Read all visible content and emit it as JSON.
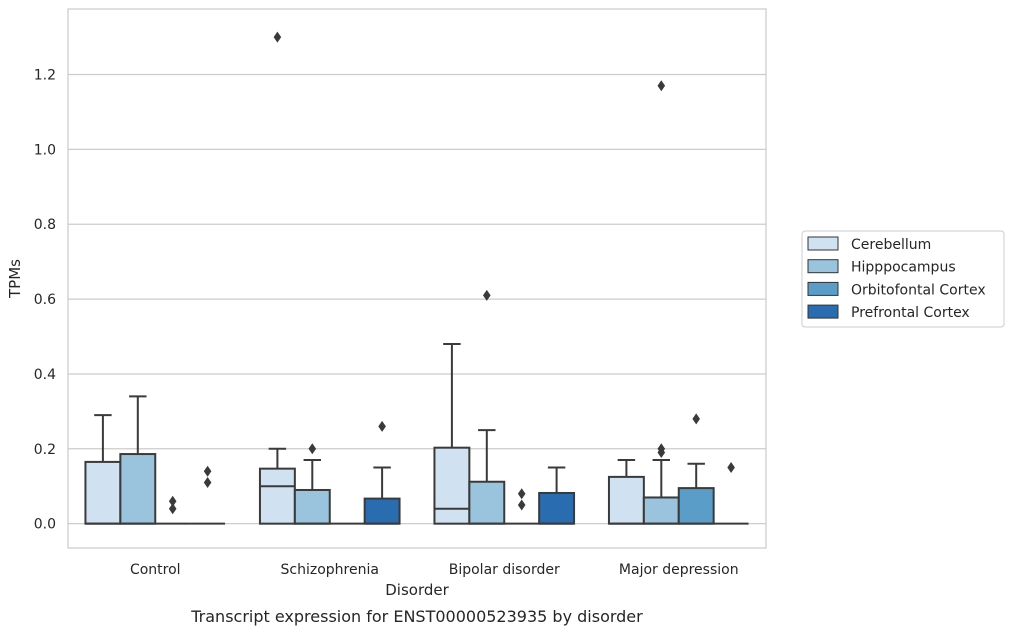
{
  "chart_data": {
    "type": "box",
    "caption": "Transcript expression for ENST00000523935 by disorder",
    "xlabel": "Disorder",
    "ylabel": "TPMs",
    "ylim": [
      -0.065,
      1.375
    ],
    "yticks": [
      0.0,
      0.2,
      0.4,
      0.6,
      0.8,
      1.0,
      1.2
    ],
    "ytick_labels": [
      "0.0",
      "0.2",
      "0.4",
      "0.6",
      "0.8",
      "1.0",
      "1.2"
    ],
    "grid": "horizontal",
    "legend_position": "outside-right",
    "categories": [
      "Control",
      "Schizophrenia",
      "Bipolar disorder",
      "Major depression"
    ],
    "series": [
      {
        "name": "Cerebellum",
        "color": "#d0e1f2",
        "boxes": [
          {
            "min": 0.0,
            "q1": 0.0,
            "median": 0.0,
            "q3": 0.165,
            "max": 0.29,
            "outliers": []
          },
          {
            "min": 0.0,
            "q1": 0.0,
            "median": 0.1,
            "q3": 0.147,
            "max": 0.2,
            "outliers": [
              1.3
            ]
          },
          {
            "min": 0.0,
            "q1": 0.0,
            "median": 0.04,
            "q3": 0.203,
            "max": 0.48,
            "outliers": []
          },
          {
            "min": 0.0,
            "q1": 0.0,
            "median": 0.0,
            "q3": 0.125,
            "max": 0.17,
            "outliers": []
          }
        ]
      },
      {
        "name": "Hipppocampus",
        "color": "#9ac3de",
        "boxes": [
          {
            "min": 0.0,
            "q1": 0.0,
            "median": 0.0,
            "q3": 0.186,
            "max": 0.34,
            "outliers": []
          },
          {
            "min": 0.0,
            "q1": 0.0,
            "median": 0.0,
            "q3": 0.09,
            "max": 0.17,
            "outliers": [
              0.2
            ]
          },
          {
            "min": 0.0,
            "q1": 0.0,
            "median": 0.0,
            "q3": 0.112,
            "max": 0.25,
            "outliers": [
              0.61
            ]
          },
          {
            "min": 0.0,
            "q1": 0.0,
            "median": 0.0,
            "q3": 0.07,
            "max": 0.17,
            "outliers": [
              0.19,
              0.2,
              1.17
            ]
          }
        ]
      },
      {
        "name": "Orbitofontal Cortex",
        "color": "#5b9dc9",
        "boxes": [
          {
            "min": 0.0,
            "q1": 0.0,
            "median": 0.0,
            "q3": 0.0,
            "max": 0.0,
            "outliers": [
              0.04,
              0.06
            ]
          },
          {
            "min": 0.0,
            "q1": 0.0,
            "median": 0.0,
            "q3": 0.0,
            "max": 0.0,
            "outliers": []
          },
          {
            "min": 0.0,
            "q1": 0.0,
            "median": 0.0,
            "q3": 0.0,
            "max": 0.0,
            "outliers": [
              0.05,
              0.08
            ]
          },
          {
            "min": 0.0,
            "q1": 0.0,
            "median": 0.0,
            "q3": 0.095,
            "max": 0.16,
            "outliers": [
              0.28
            ]
          }
        ]
      },
      {
        "name": "Prefrontal Cortex",
        "color": "#2a6cb0",
        "boxes": [
          {
            "min": 0.0,
            "q1": 0.0,
            "median": 0.0,
            "q3": 0.0,
            "max": 0.0,
            "outliers": [
              0.11,
              0.14
            ]
          },
          {
            "min": 0.0,
            "q1": 0.0,
            "median": 0.0,
            "q3": 0.067,
            "max": 0.15,
            "outliers": [
              0.26
            ]
          },
          {
            "min": 0.0,
            "q1": 0.0,
            "median": 0.0,
            "q3": 0.082,
            "max": 0.15,
            "outliers": []
          },
          {
            "min": 0.0,
            "q1": 0.0,
            "median": 0.0,
            "q3": 0.0,
            "max": 0.0,
            "outliers": [
              0.15
            ]
          }
        ]
      }
    ]
  }
}
